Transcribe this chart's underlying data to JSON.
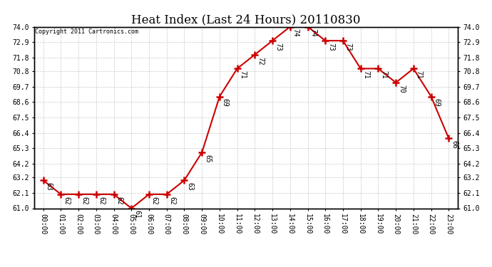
{
  "title": "Heat Index (Last 24 Hours) 20110830",
  "copyright": "Copyright 2011 Cartronics.com",
  "hours": [
    "00:00",
    "01:00",
    "02:00",
    "03:00",
    "04:00",
    "05:00",
    "06:00",
    "07:00",
    "08:00",
    "09:00",
    "10:00",
    "11:00",
    "12:00",
    "13:00",
    "14:00",
    "15:00",
    "16:00",
    "17:00",
    "18:00",
    "19:00",
    "20:00",
    "21:00",
    "22:00",
    "23:00"
  ],
  "values": [
    63,
    62,
    62,
    62,
    62,
    61,
    62,
    62,
    63,
    65,
    69,
    71,
    72,
    73,
    74,
    74,
    73,
    73,
    71,
    71,
    70,
    71,
    69,
    66
  ],
  "ylim": [
    61.0,
    74.0
  ],
  "yticks": [
    61.0,
    62.1,
    63.2,
    64.2,
    65.3,
    66.4,
    67.5,
    68.6,
    69.7,
    70.8,
    71.8,
    72.9,
    74.0
  ],
  "line_color": "#cc0000",
  "marker": "+",
  "marker_color": "#cc0000",
  "bg_color": "#ffffff",
  "grid_color": "#c8c8c8",
  "title_fontsize": 12,
  "label_fontsize": 7,
  "annot_fontsize": 7,
  "copyright_fontsize": 6
}
